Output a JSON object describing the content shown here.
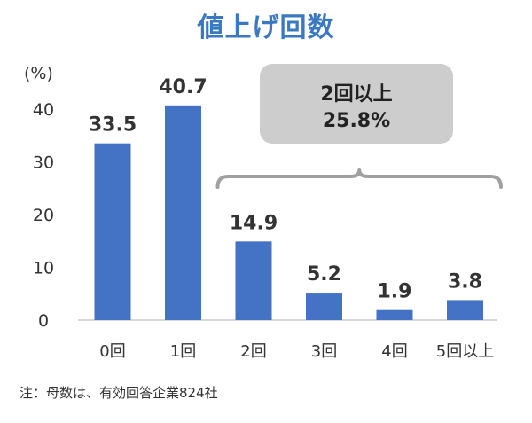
{
  "chart_data": {
    "type": "bar",
    "title": "値上げ回数",
    "ylabel": "(%)",
    "categories": [
      "0回",
      "1回",
      "2回",
      "3回",
      "4回",
      "5回以上"
    ],
    "values": [
      33.5,
      40.7,
      14.9,
      5.2,
      1.9,
      3.8
    ],
    "ylim": [
      0,
      45
    ],
    "yticks": [
      "0",
      "10",
      "20",
      "30",
      "40"
    ],
    "data_labels": [
      "33.5",
      "40.7",
      "14.9",
      "5.2",
      "1.9",
      "3.8"
    ],
    "bar_color": "#4472c4",
    "grid": false,
    "annotation": {
      "line1": "2回以上",
      "line2": "25.8%"
    }
  },
  "note": "注：母数は、有効回答企業824社"
}
